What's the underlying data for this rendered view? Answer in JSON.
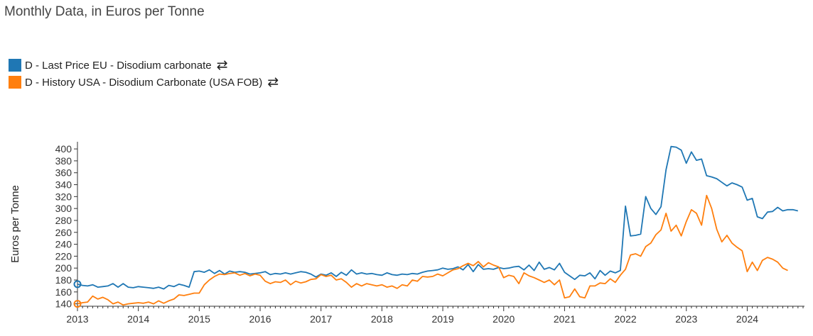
{
  "chart_data": {
    "type": "line",
    "title": "Monthly Data, in Euros per Tonne",
    "ylabel": "Euros per Tonne",
    "xlim": [
      2013,
      2024.94
    ],
    "ylim": [
      136,
      412
    ],
    "yticks": [
      140,
      160,
      180,
      200,
      220,
      240,
      260,
      280,
      300,
      320,
      340,
      360,
      380,
      400
    ],
    "xticks": [
      "2013",
      "2014",
      "2015",
      "2016",
      "2017",
      "2018",
      "2019",
      "2020",
      "2021",
      "2022",
      "2023",
      "2024"
    ],
    "series": [
      {
        "name": "D - Last Price EU - Disodium carbonate",
        "color": "#1f77b4",
        "x_start": 2013,
        "step": 0.08333,
        "values": [
          173,
          171,
          170,
          172,
          168,
          169,
          170,
          174,
          168,
          174,
          168,
          167,
          169,
          168,
          167,
          166,
          168,
          165,
          171,
          169,
          173,
          171,
          168,
          194,
          195,
          193,
          197,
          191,
          196,
          190,
          195,
          193,
          194,
          193,
          190,
          191,
          192,
          194,
          189,
          191,
          190,
          192,
          190,
          192,
          194,
          193,
          190,
          185,
          190,
          188,
          192,
          186,
          193,
          188,
          197,
          190,
          192,
          190,
          191,
          189,
          188,
          192,
          189,
          188,
          190,
          189,
          191,
          190,
          193,
          195,
          196,
          197,
          200,
          198,
          199,
          202,
          197,
          206,
          194,
          206,
          198,
          199,
          198,
          201,
          199,
          200,
          202,
          203,
          197,
          205,
          196,
          210,
          198,
          201,
          197,
          208,
          193,
          187,
          181,
          188,
          187,
          192,
          182,
          196,
          188,
          195,
          192,
          196,
          304,
          254,
          255,
          257,
          320,
          300,
          290,
          303,
          365,
          404,
          403,
          398,
          376,
          395,
          381,
          383,
          355,
          353,
          350,
          344,
          338,
          343,
          340,
          336,
          314,
          317,
          286,
          283,
          294,
          295,
          302,
          296,
          298,
          298,
          296
        ]
      },
      {
        "name": "D - History USA - Disodium Carbonate (USA FOB)",
        "color": "#ff7f0e",
        "x_start": 2013,
        "step": 0.08333,
        "values": [
          140,
          142,
          143,
          153,
          148,
          151,
          147,
          140,
          143,
          138,
          140,
          141,
          142,
          141,
          143,
          140,
          145,
          141,
          145,
          148,
          155,
          154,
          156,
          158,
          158,
          172,
          180,
          186,
          190,
          189,
          191,
          192,
          188,
          191,
          187,
          190,
          188,
          178,
          174,
          177,
          176,
          180,
          172,
          178,
          175,
          177,
          181,
          182,
          189,
          186,
          188,
          180,
          182,
          176,
          168,
          174,
          170,
          174,
          172,
          170,
          172,
          168,
          170,
          166,
          172,
          170,
          180,
          178,
          186,
          185,
          186,
          190,
          187,
          192,
          197,
          199,
          204,
          208,
          204,
          211,
          202,
          209,
          205,
          202,
          184,
          188,
          186,
          174,
          192,
          187,
          184,
          180,
          176,
          180,
          172,
          180,
          150,
          152,
          165,
          152,
          150,
          170,
          170,
          175,
          174,
          182,
          176,
          188,
          198,
          222,
          224,
          220,
          236,
          242,
          256,
          264,
          292,
          262,
          272,
          254,
          278,
          298,
          292,
          272,
          322,
          300,
          265,
          244,
          255,
          242,
          235,
          229,
          194,
          210,
          196,
          213,
          218,
          215,
          210,
          200,
          196
        ]
      }
    ]
  },
  "legend": {
    "swap_glyph": "⇄"
  }
}
